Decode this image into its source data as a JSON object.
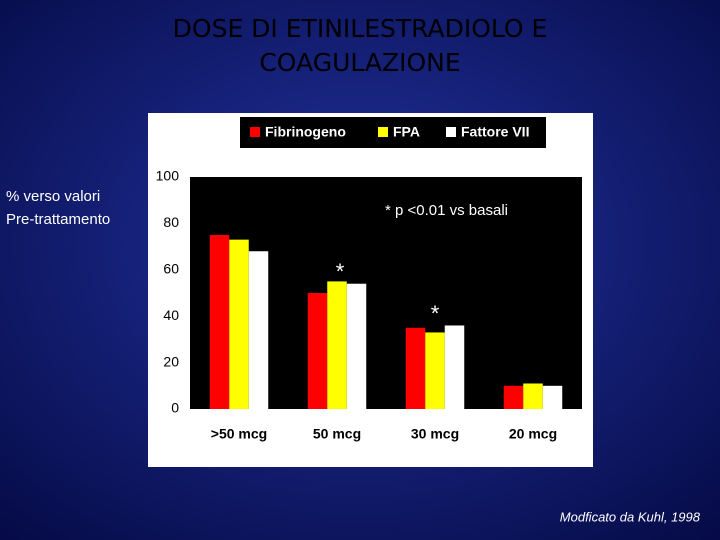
{
  "chart_data": {
    "type": "bar",
    "title": [
      "DOSE DI ETINILESTRADIOLO E",
      "COAGULAZIONE"
    ],
    "y_label": [
      "% verso valori",
      "Pre-trattamento"
    ],
    "categories": [
      ">50 mcg",
      "50 mcg",
      "30 mcg",
      "20 mcg"
    ],
    "series": [
      {
        "name": "Fibrinogeno",
        "color": "#ff0000",
        "values": [
          75,
          50,
          35,
          10
        ]
      },
      {
        "name": "FPA",
        "color": "#ffff00",
        "values": [
          73,
          55,
          33,
          11
        ]
      },
      {
        "name": "Fattore VII",
        "color": "#ffffff",
        "values": [
          68,
          54,
          36,
          10
        ]
      }
    ],
    "ylim": [
      0,
      100
    ],
    "yticks": [
      0,
      20,
      40,
      60,
      80,
      100
    ],
    "grid": false,
    "annotations": [
      "*",
      "*",
      "*"
    ],
    "note": "* p <0.01 vs basali",
    "source": "Modficato da Kuhl, 1998"
  }
}
